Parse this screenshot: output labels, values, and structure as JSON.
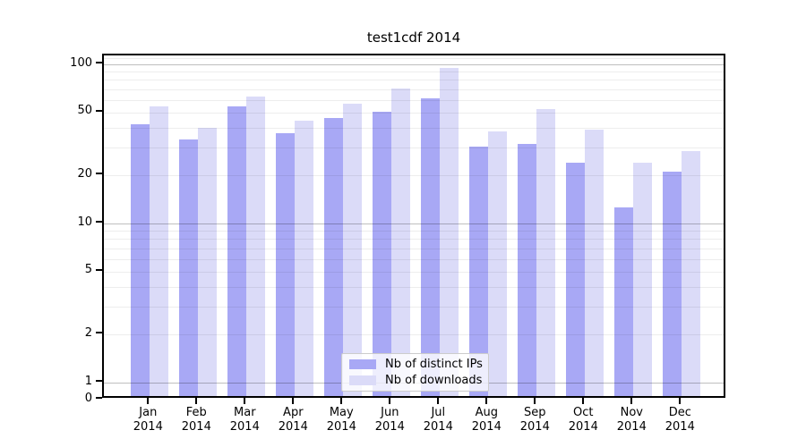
{
  "chart_data": {
    "type": "bar",
    "title": "test1cdf 2014",
    "categories": [
      "Jan",
      "Feb",
      "Mar",
      "Apr",
      "May",
      "Jun",
      "Jul",
      "Aug",
      "Sep",
      "Oct",
      "Nov",
      "Dec"
    ],
    "x_tick_year": "2014",
    "series": [
      {
        "name": "Nb of distinct IPs",
        "color": "#a8a8f5",
        "values": [
          40,
          32,
          52,
          35,
          44,
          48,
          58,
          29,
          30,
          23,
          12,
          20
        ]
      },
      {
        "name": "Nb of downloads",
        "color": "#dbdbf8",
        "values": [
          52,
          38,
          60,
          42,
          54,
          67,
          90,
          36,
          50,
          37,
          23,
          27
        ]
      }
    ],
    "yscale": "log",
    "ylim_display": [
      0,
      114
    ],
    "yticks": [
      {
        "label": "100",
        "value": 100
      },
      {
        "label": "50",
        "value": 50
      },
      {
        "label": "20",
        "value": 20
      },
      {
        "label": "10",
        "value": 10
      },
      {
        "label": "5",
        "value": 5
      },
      {
        "label": "2",
        "value": 2
      },
      {
        "label": "1",
        "value": 1
      },
      {
        "label": "0",
        "value": 0
      }
    ],
    "grid": {
      "major_values": [
        1,
        10,
        100
      ],
      "minor_values": [
        2,
        3,
        4,
        5,
        6,
        7,
        8,
        9,
        20,
        30,
        40,
        50,
        60,
        70,
        80,
        90,
        110
      ]
    },
    "legend": {
      "position": "lower center",
      "entries": [
        "Nb of distinct IPs",
        "Nb of downloads"
      ]
    }
  },
  "colors": {
    "major_grid": "rgba(0,0,0,0.25)",
    "minor_grid": "rgba(0,0,0,0.07)",
    "axis": "#000000",
    "text": "#000000"
  }
}
